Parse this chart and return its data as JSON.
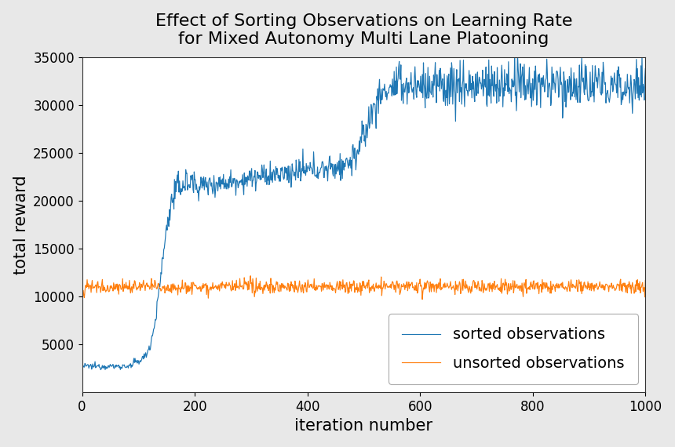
{
  "title": "Effect of Sorting Observations on Learning Rate\nfor Mixed Autonomy Multi Lane Platooning",
  "xlabel": "iteration number",
  "ylabel": "total reward",
  "xlim": [
    0,
    1000
  ],
  "ylim": [
    0,
    35000
  ],
  "yticks": [
    5000,
    10000,
    15000,
    20000,
    25000,
    30000,
    35000
  ],
  "xticks": [
    0,
    200,
    400,
    600,
    800,
    1000
  ],
  "sorted_color": "#1f77b4",
  "unsorted_color": "#ff7f0e",
  "fig_bg": "#e8e8e8",
  "ax_bg": "#ffffff",
  "title_fontsize": 16,
  "label_fontsize": 15,
  "tick_fontsize": 12,
  "legend_fontsize": 14,
  "seed": 12345
}
